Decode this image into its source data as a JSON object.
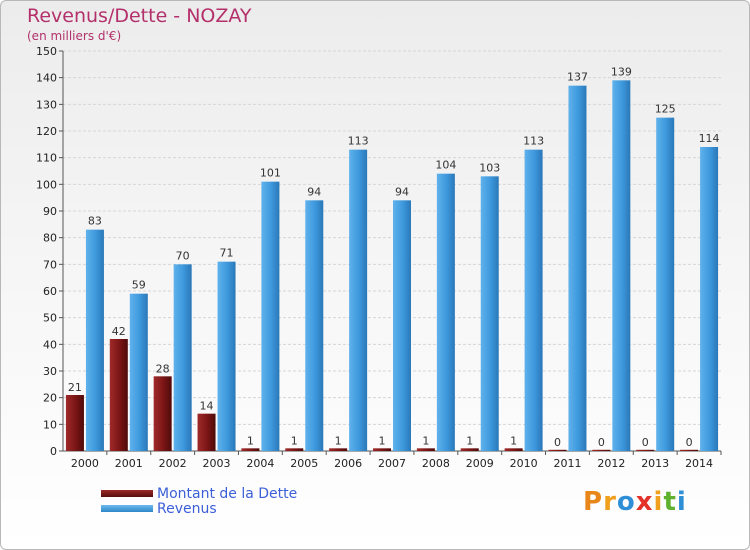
{
  "title": "Revenus/Dette - NOZAY",
  "subtitle": "(en milliers d'€)",
  "colors": {
    "debt": "#7a1515",
    "revenue": "#3d98dc",
    "title": "#b3306b"
  },
  "legend": {
    "debt_label": "Montant de la Dette",
    "revenue_label": "Revenus"
  },
  "logo": {
    "text": "Proxiti"
  },
  "chart_data": {
    "type": "bar",
    "title": "Revenus/Dette - NOZAY",
    "subtitle": "(en milliers d'€)",
    "xlabel": "",
    "ylabel": "",
    "ylim": [
      0,
      150
    ],
    "yticks": [
      0,
      10,
      20,
      30,
      40,
      50,
      60,
      70,
      80,
      90,
      100,
      110,
      120,
      130,
      140,
      150
    ],
    "grid": true,
    "legend_position": "bottom-left",
    "categories": [
      "2000",
      "2001",
      "2002",
      "2003",
      "2004",
      "2005",
      "2006",
      "2007",
      "2008",
      "2009",
      "2010",
      "2011",
      "2012",
      "2013",
      "2014"
    ],
    "series": [
      {
        "name": "Montant de la Dette",
        "color": "#7a1515",
        "values": [
          21,
          42,
          28,
          14,
          1,
          1,
          1,
          1,
          1,
          1,
          1,
          0,
          0,
          0,
          0
        ]
      },
      {
        "name": "Revenus",
        "color": "#3d98dc",
        "values": [
          83,
          59,
          70,
          71,
          101,
          94,
          113,
          94,
          104,
          103,
          113,
          137,
          139,
          125,
          114
        ]
      }
    ]
  }
}
